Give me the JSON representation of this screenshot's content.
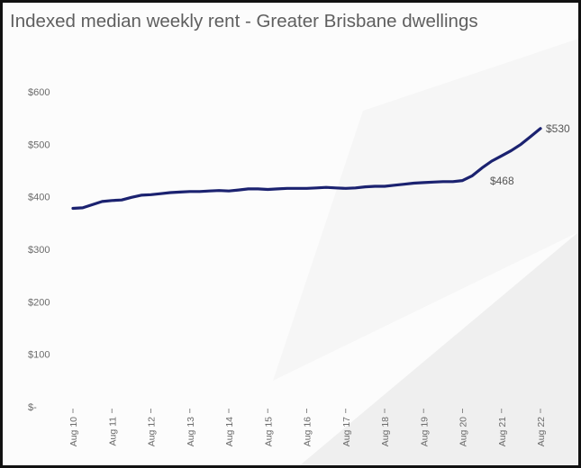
{
  "chart_data": {
    "type": "line",
    "title": "Indexed median weekly rent - Greater Brisbane dwellings",
    "xlabel": "",
    "ylabel": "",
    "ylim": [
      0,
      600
    ],
    "y_ticks": [
      0,
      100,
      200,
      300,
      400,
      500,
      600
    ],
    "y_tick_labels": [
      "$-",
      "$100",
      "$200",
      "$300",
      "$400",
      "$500",
      "$600"
    ],
    "x_tick_labels": [
      "Aug 10",
      "Aug 11",
      "Aug 12",
      "Aug 13",
      "Aug 14",
      "Aug 15",
      "Aug 16",
      "Aug 17",
      "Aug 18",
      "Aug 19",
      "Aug 20",
      "Aug 21",
      "Aug 22"
    ],
    "grid": false,
    "legend": "none",
    "line_color": "#1b2270",
    "series": [
      {
        "x": [
          "Aug 10",
          "Nov 10",
          "Feb 11",
          "May 11",
          "Aug 11",
          "Nov 11",
          "Feb 12",
          "May 12",
          "Aug 12",
          "Nov 12",
          "Feb 13",
          "May 13",
          "Aug 13",
          "Nov 13",
          "Feb 14",
          "May 14",
          "Aug 14",
          "Nov 14",
          "Feb 15",
          "May 15",
          "Aug 15",
          "Nov 15",
          "Feb 16",
          "May 16",
          "Aug 16",
          "Nov 16",
          "Feb 17",
          "May 17",
          "Aug 17",
          "Nov 17",
          "Feb 18",
          "May 18",
          "Aug 18",
          "Nov 18",
          "Feb 19",
          "May 19",
          "Aug 19",
          "Nov 19",
          "Feb 20",
          "May 20",
          "Aug 20",
          "Nov 20",
          "Feb 21",
          "May 21",
          "Aug 21",
          "Nov 21",
          "Feb 22",
          "May 22",
          "Aug 22"
        ],
        "values": [
          378,
          379,
          385,
          391,
          393,
          394,
          399,
          403,
          404,
          406,
          408,
          409,
          410,
          410,
          411,
          412,
          411,
          413,
          415,
          415,
          414,
          415,
          416,
          416,
          416,
          417,
          418,
          417,
          416,
          417,
          419,
          420,
          420,
          422,
          424,
          426,
          427,
          428,
          429,
          429,
          431,
          440,
          455,
          468,
          478,
          488,
          500,
          515,
          530
        ]
      }
    ],
    "annotations": [
      {
        "x": "May 21",
        "label": "$468"
      },
      {
        "x": "Aug 22",
        "label": "$530"
      }
    ]
  }
}
